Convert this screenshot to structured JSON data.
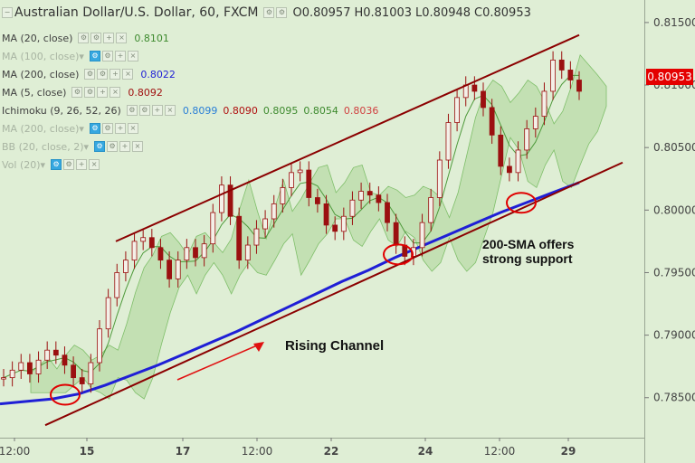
{
  "header": {
    "symbol_title": "Australian Dollar/U.S. Dollar, 60, FXCM",
    "open_label": "O",
    "open": "0.80957",
    "high_label": "H",
    "high": "0.81003",
    "low_label": "L",
    "low": "0.80948",
    "close_label": "C",
    "close": "0.80953"
  },
  "indicators": [
    {
      "label": "MA (20, close)",
      "value": "0.8101",
      "value_color": "#3d8a2e",
      "visible": true
    },
    {
      "label": "MA (100, close)",
      "value": "",
      "value_color": "#a8b4a2",
      "visible": false
    },
    {
      "label": "MA (200, close)",
      "value": "0.8022",
      "value_color": "#1f1fd6",
      "visible": true
    },
    {
      "label": "MA (5, close)",
      "value": "0.8092",
      "value_color": "#a01010",
      "visible": true
    },
    {
      "label": "Ichimoku (9, 26, 52, 26)",
      "values": [
        "0.8099",
        "0.8090",
        "0.8095",
        "0.8054",
        "0.8036"
      ],
      "value_colors": [
        "#2a7fd6",
        "#b01010",
        "#3d8a2e",
        "#3d8a2e",
        "#d04040"
      ],
      "visible": true
    },
    {
      "label": "MA (200, close)",
      "value": "",
      "value_color": "#a8b4a2",
      "visible": false
    },
    {
      "label": "BB (20, close, 2)",
      "value": "",
      "value_color": "#a8b4a2",
      "visible": false
    },
    {
      "label": "Vol (20)",
      "value": "",
      "value_color": "#a8b4a2",
      "visible": false
    }
  ],
  "last_price": "0.80953",
  "annotations": {
    "channel_label": "Rising Channel",
    "support_note_line1": "200-SMA offers",
    "support_note_line2": "strong support"
  },
  "colors": {
    "background": "#dfeed5",
    "channel": "#8b0000",
    "sma200": "#1f1fd6",
    "candle": "#9b1010",
    "cloud": "#b9dba7",
    "circle": "#e00000",
    "arrow": "#e01010"
  },
  "chart_data": {
    "type": "candlestick",
    "symbol": "AUDUSD",
    "timeframe": "60",
    "x_tick_labels": [
      "12:00",
      "15",
      "17",
      "12:00",
      "22",
      "24",
      "12:00",
      "29"
    ],
    "y_ticks": [
      "0.81500",
      "0.81000",
      "0.80500",
      "0.80000",
      "0.79500",
      "0.79000",
      "0.78500"
    ],
    "ylim": [
      0.7818,
      0.8168
    ],
    "close_series": [
      0.7866,
      0.7872,
      0.7878,
      0.7869,
      0.788,
      0.7888,
      0.7884,
      0.7876,
      0.7866,
      0.7861,
      0.7878,
      0.7905,
      0.793,
      0.795,
      0.796,
      0.7975,
      0.7978,
      0.797,
      0.796,
      0.7945,
      0.796,
      0.797,
      0.7962,
      0.7973,
      0.7998,
      0.802,
      0.7995,
      0.796,
      0.7972,
      0.7985,
      0.7993,
      0.8005,
      0.8018,
      0.803,
      0.8032,
      0.801,
      0.8005,
      0.7988,
      0.7983,
      0.7995,
      0.8008,
      0.8015,
      0.8012,
      0.8006,
      0.799,
      0.7972,
      0.7963,
      0.797,
      0.799,
      0.801,
      0.804,
      0.807,
      0.809,
      0.81,
      0.8095,
      0.8082,
      0.806,
      0.8035,
      0.803,
      0.8048,
      0.8065,
      0.8075,
      0.8095,
      0.812,
      0.8112,
      0.8104,
      0.8095
    ],
    "sma200_series": [
      0.7845,
      0.7847,
      0.7849,
      0.7853,
      0.786,
      0.7868,
      0.7876,
      0.7885,
      0.7894,
      0.7903,
      0.7913,
      0.7923,
      0.7933,
      0.7943,
      0.7952,
      0.7962,
      0.7971,
      0.798,
      0.7989,
      0.7998,
      0.8006,
      0.8014,
      0.8022
    ],
    "channel_upper": [
      [
        0,
        0.7975
      ],
      [
        1,
        0.814
      ]
    ],
    "channel_lower": [
      [
        0,
        0.7828
      ],
      [
        1,
        0.8038
      ]
    ],
    "support_touch_points": [
      "15",
      "23",
      "28"
    ]
  }
}
